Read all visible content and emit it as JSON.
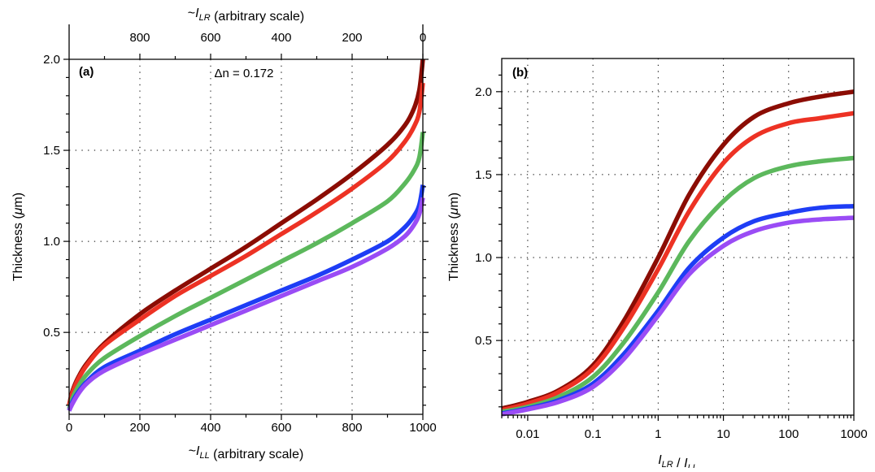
{
  "chart_data": [
    {
      "panel": "(a)",
      "type": "line",
      "annotation": "Δn = 0.172",
      "xlabel": "~I_LL  (arbitrary scale)",
      "ylabel": "Thickness (μm)",
      "top_xlabel": "~I_LR  (arbitrary scale)",
      "xlim": [
        0,
        1000
      ],
      "ylim": [
        0.05,
        2.0
      ],
      "top_xlim": [
        1000,
        0
      ],
      "xticks": [
        0,
        200,
        400,
        600,
        800,
        1000
      ],
      "yticks": [
        0.5,
        1.0,
        1.5,
        2.0
      ],
      "top_xticks": [
        800,
        600,
        400,
        200,
        0
      ],
      "grid": true,
      "series": [
        {
          "color": "#8b0c03",
          "x": [
            0,
            10,
            25,
            50,
            100,
            200,
            300,
            400,
            500,
            600,
            700,
            800,
            900,
            950,
            975,
            990,
            1000
          ],
          "y": [
            0.1,
            0.18,
            0.25,
            0.33,
            0.44,
            0.6,
            0.73,
            0.85,
            0.97,
            1.1,
            1.23,
            1.37,
            1.53,
            1.64,
            1.73,
            1.83,
            2.0
          ]
        },
        {
          "color": "#ed3224",
          "x": [
            0,
            10,
            25,
            50,
            100,
            200,
            300,
            400,
            500,
            600,
            700,
            800,
            900,
            950,
            975,
            990,
            1000
          ],
          "y": [
            0.1,
            0.17,
            0.24,
            0.32,
            0.43,
            0.57,
            0.7,
            0.81,
            0.92,
            1.04,
            1.16,
            1.29,
            1.44,
            1.55,
            1.63,
            1.71,
            1.87
          ]
        },
        {
          "color": "#5cb85c",
          "x": [
            0,
            10,
            25,
            50,
            100,
            200,
            300,
            400,
            500,
            600,
            700,
            800,
            900,
            950,
            975,
            990,
            1000
          ],
          "y": [
            0.08,
            0.14,
            0.2,
            0.27,
            0.36,
            0.48,
            0.59,
            0.69,
            0.79,
            0.89,
            0.99,
            1.1,
            1.22,
            1.32,
            1.39,
            1.46,
            1.6
          ]
        },
        {
          "color": "#1e3df5",
          "x": [
            0,
            10,
            25,
            50,
            100,
            200,
            300,
            400,
            500,
            600,
            700,
            800,
            900,
            950,
            975,
            990,
            1000
          ],
          "y": [
            0.07,
            0.12,
            0.17,
            0.23,
            0.31,
            0.4,
            0.49,
            0.57,
            0.65,
            0.73,
            0.81,
            0.9,
            1.0,
            1.08,
            1.14,
            1.2,
            1.31
          ]
        },
        {
          "color": "#9a4cf5",
          "x": [
            0,
            10,
            25,
            50,
            100,
            200,
            300,
            400,
            500,
            600,
            700,
            800,
            900,
            950,
            975,
            990,
            1000
          ],
          "y": [
            0.07,
            0.11,
            0.16,
            0.22,
            0.29,
            0.38,
            0.46,
            0.54,
            0.62,
            0.7,
            0.78,
            0.86,
            0.96,
            1.03,
            1.09,
            1.15,
            1.24
          ]
        }
      ]
    },
    {
      "panel": "(b)",
      "type": "line",
      "xlabel": "I_LR / I_LL",
      "ylabel": "Thickness (μm)",
      "xscale": "log",
      "xlim": [
        0.004,
        1000
      ],
      "ylim": [
        0.05,
        2.2
      ],
      "xticks": [
        0.01,
        0.1,
        1,
        10,
        100,
        1000
      ],
      "xticklabels": [
        "0.01",
        "0.1",
        "1",
        "10",
        "100",
        "1000"
      ],
      "yticks": [
        0.5,
        1.0,
        1.5,
        2.0
      ],
      "grid": true,
      "series": [
        {
          "color": "#8b0c03",
          "x": [
            0.004,
            0.01,
            0.03,
            0.1,
            0.3,
            1,
            3,
            10,
            30,
            100,
            300,
            1000
          ],
          "y": [
            0.09,
            0.13,
            0.2,
            0.35,
            0.62,
            1.0,
            1.38,
            1.68,
            1.85,
            1.93,
            1.97,
            2.0
          ]
        },
        {
          "color": "#ed3224",
          "x": [
            0.004,
            0.01,
            0.03,
            0.1,
            0.3,
            1,
            3,
            10,
            30,
            100,
            300,
            1000
          ],
          "y": [
            0.08,
            0.12,
            0.19,
            0.33,
            0.58,
            0.93,
            1.28,
            1.57,
            1.73,
            1.81,
            1.84,
            1.87
          ]
        },
        {
          "color": "#5cb85c",
          "x": [
            0.004,
            0.01,
            0.03,
            0.1,
            0.3,
            1,
            3,
            10,
            30,
            100,
            300,
            1000
          ],
          "y": [
            0.07,
            0.1,
            0.16,
            0.28,
            0.49,
            0.79,
            1.1,
            1.34,
            1.48,
            1.55,
            1.58,
            1.6
          ]
        },
        {
          "color": "#1e3df5",
          "x": [
            0.004,
            0.01,
            0.03,
            0.1,
            0.3,
            1,
            3,
            10,
            30,
            100,
            300,
            1000
          ],
          "y": [
            0.06,
            0.09,
            0.14,
            0.24,
            0.42,
            0.68,
            0.94,
            1.12,
            1.22,
            1.27,
            1.3,
            1.31
          ]
        },
        {
          "color": "#9a4cf5",
          "x": [
            0.004,
            0.01,
            0.03,
            0.1,
            0.3,
            1,
            3,
            10,
            30,
            100,
            300,
            1000
          ],
          "y": [
            0.055,
            0.085,
            0.13,
            0.22,
            0.39,
            0.65,
            0.9,
            1.07,
            1.16,
            1.21,
            1.23,
            1.24
          ]
        }
      ]
    }
  ]
}
